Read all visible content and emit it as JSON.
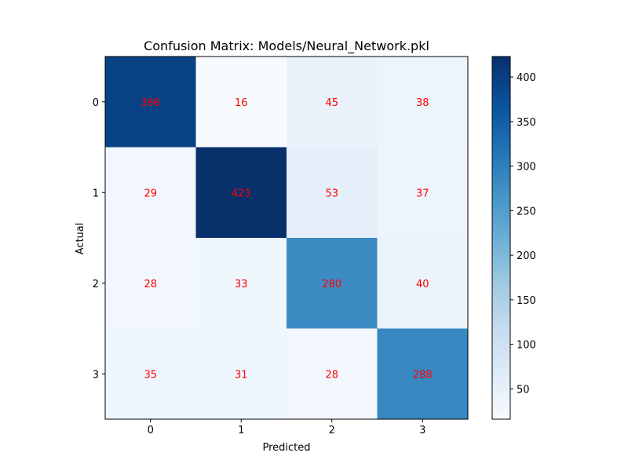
{
  "chart_data": {
    "type": "heatmap",
    "title": "Confusion Matrix: Models/Neural_Network.pkl",
    "xlabel": "Predicted",
    "ylabel": "Actual",
    "x_categories": [
      "0",
      "1",
      "2",
      "3"
    ],
    "y_categories": [
      "0",
      "1",
      "2",
      "3"
    ],
    "values": [
      [
        396,
        16,
        45,
        38
      ],
      [
        29,
        423,
        53,
        37
      ],
      [
        28,
        33,
        280,
        40
      ],
      [
        35,
        31,
        28,
        288
      ]
    ],
    "colormap": "Blues",
    "annotation_color": "#ff0000",
    "colorbar": {
      "range": [
        16,
        423
      ],
      "ticks": [
        50,
        100,
        150,
        200,
        250,
        300,
        350,
        400
      ]
    },
    "grid": false
  }
}
